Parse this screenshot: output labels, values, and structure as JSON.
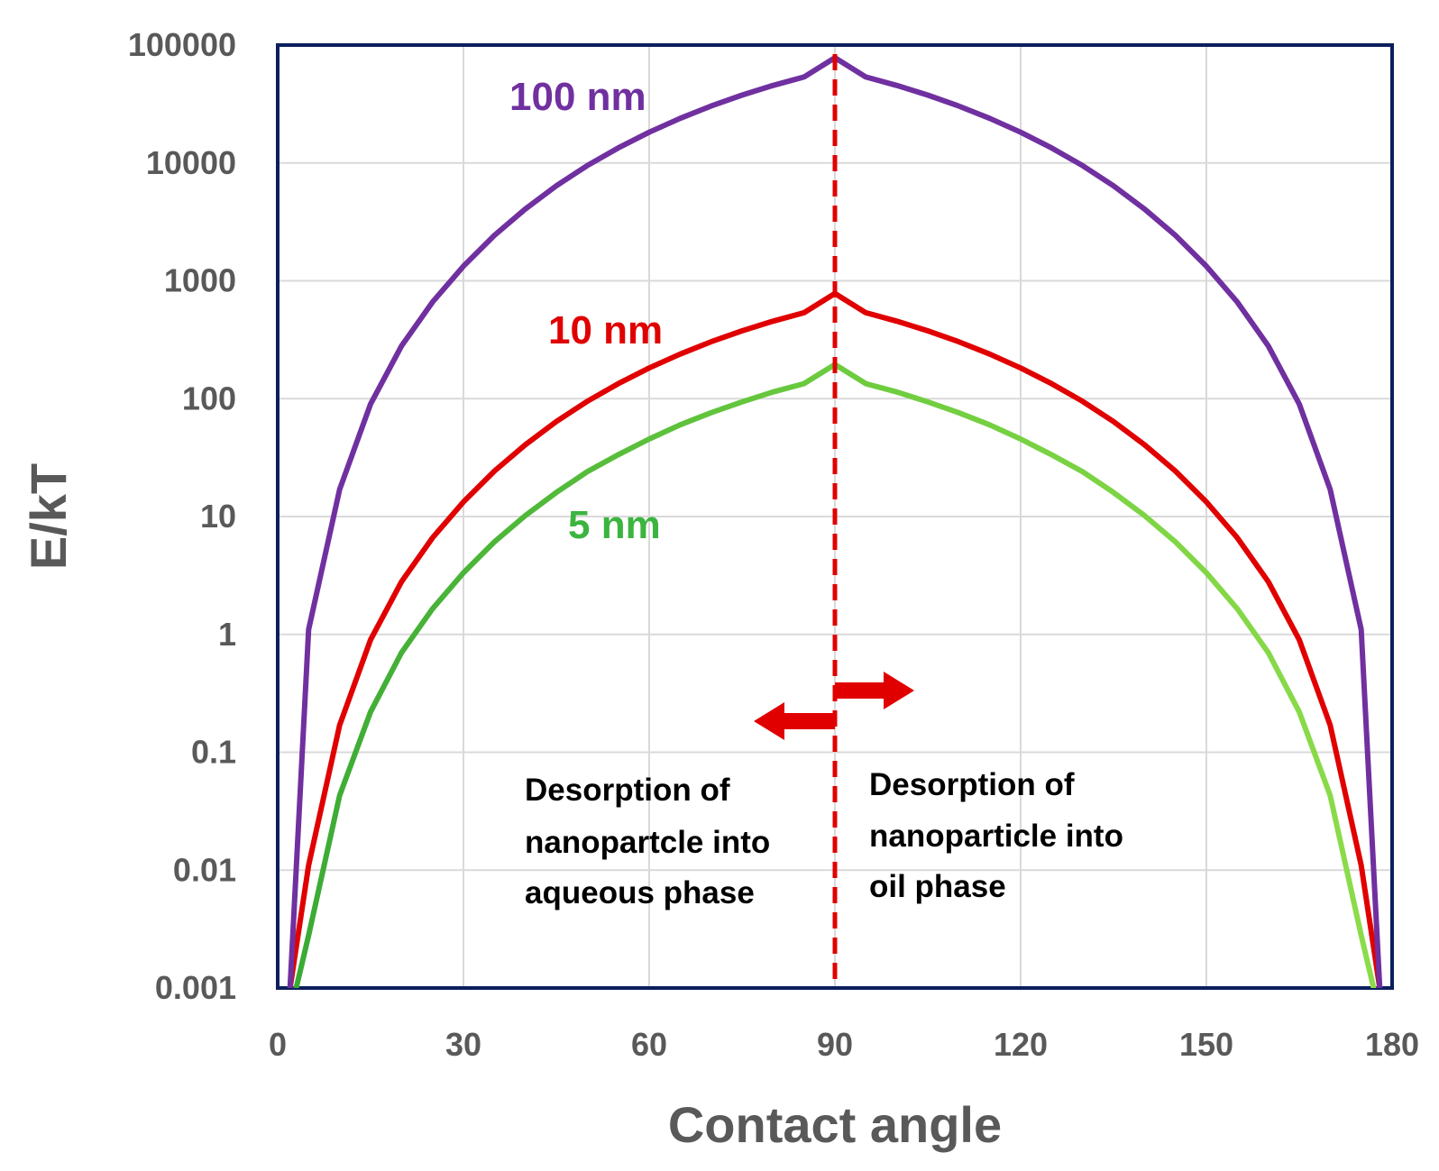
{
  "chart_data": {
    "type": "line",
    "title": "",
    "xlabel": "Contact angle",
    "ylabel": "E/kT",
    "xlim": [
      0,
      180
    ],
    "ylim": [
      0.001,
      100000
    ],
    "yscale": "log",
    "grid": true,
    "x_ticks": [
      "0",
      "30",
      "60",
      "90",
      "120",
      "150",
      "180"
    ],
    "y_ticks": [
      "0.001",
      "0.01",
      "0.1",
      "1",
      "10",
      "100",
      "1000",
      "10000",
      "100000"
    ],
    "x": [
      2,
      5,
      10,
      15,
      20,
      25,
      30,
      35,
      40,
      45,
      50,
      55,
      60,
      65,
      70,
      75,
      80,
      85,
      90,
      95,
      100,
      105,
      110,
      115,
      120,
      125,
      130,
      135,
      140,
      145,
      150,
      155,
      160,
      165,
      170,
      175,
      178
    ],
    "series": [
      {
        "name": "100 nm",
        "color": "#7030A0",
        "values": [
          0.001,
          1.1,
          17,
          90,
          280,
          660,
          1330,
          2430,
          4070,
          6400,
          9500,
          13400,
          18200,
          23900,
          30400,
          37600,
          45400,
          53600,
          78000,
          53600,
          45400,
          37600,
          30400,
          23900,
          18200,
          13400,
          9500,
          6400,
          4070,
          2430,
          1330,
          660,
          280,
          90,
          17,
          1.1,
          0.001
        ]
      },
      {
        "name": "10 nm",
        "color": "#E00000",
        "values": [
          0.001,
          0.011,
          0.17,
          0.9,
          2.8,
          6.6,
          13.3,
          24.3,
          40.7,
          64,
          95,
          134,
          182,
          239,
          304,
          376,
          454,
          536,
          780,
          536,
          454,
          376,
          304,
          239,
          182,
          134,
          95,
          64,
          40.7,
          24.3,
          13.3,
          6.6,
          2.8,
          0.9,
          0.17,
          0.011,
          0.001
        ]
      },
      {
        "name": "5 nm",
        "color": "#5CC040",
        "values": [
          0.0006,
          0.0028,
          0.043,
          0.22,
          0.7,
          1.65,
          3.33,
          6.1,
          10.2,
          16,
          24,
          33.5,
          45.5,
          60,
          76,
          94,
          114,
          134,
          195,
          134,
          114,
          94,
          76,
          60,
          45.5,
          33.5,
          24,
          16,
          10.2,
          6.1,
          3.33,
          1.65,
          0.7,
          0.22,
          0.043,
          0.0028,
          0.0006
        ]
      }
    ],
    "annotations": {
      "divider_x": 90,
      "left_text": [
        "Desorption of",
        "nanopartcle into",
        "aqueous phase"
      ],
      "right_text": [
        "Desorption of",
        "nanoparticle into",
        "oil phase"
      ]
    }
  }
}
